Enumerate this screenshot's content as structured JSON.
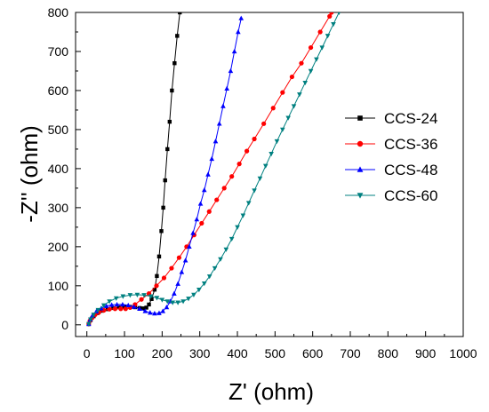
{
  "chart_data": {
    "type": "line",
    "xlabel": "Z' (ohm)",
    "ylabel": "-Z'' (ohm)",
    "xlim": [
      -30,
      1000
    ],
    "ylim": [
      -30,
      800
    ],
    "x_ticks": [
      0,
      100,
      200,
      300,
      400,
      500,
      600,
      700,
      800,
      900,
      1000
    ],
    "y_ticks": [
      0,
      100,
      200,
      300,
      400,
      500,
      600,
      700,
      800
    ],
    "grid": false,
    "legend_position": "right",
    "series": [
      {
        "name": "CCS-24",
        "color": "#000000",
        "marker": "square",
        "points": [
          [
            5,
            2
          ],
          [
            10,
            12
          ],
          [
            18,
            22
          ],
          [
            28,
            30
          ],
          [
            40,
            36
          ],
          [
            55,
            40
          ],
          [
            70,
            43
          ],
          [
            85,
            45
          ],
          [
            100,
            46
          ],
          [
            115,
            46
          ],
          [
            128,
            45
          ],
          [
            140,
            43
          ],
          [
            150,
            42
          ],
          [
            158,
            44
          ],
          [
            165,
            52
          ],
          [
            172,
            66
          ],
          [
            180,
            90
          ],
          [
            186,
            125
          ],
          [
            192,
            175
          ],
          [
            198,
            240
          ],
          [
            203,
            300
          ],
          [
            208,
            370
          ],
          [
            214,
            450
          ],
          [
            220,
            520
          ],
          [
            226,
            600
          ],
          [
            233,
            670
          ],
          [
            240,
            740
          ],
          [
            247,
            800
          ]
        ]
      },
      {
        "name": "CCS-36",
        "color": "#ff0000",
        "marker": "circle",
        "points": [
          [
            5,
            2
          ],
          [
            8,
            10
          ],
          [
            14,
            18
          ],
          [
            22,
            26
          ],
          [
            32,
            32
          ],
          [
            45,
            37
          ],
          [
            60,
            40
          ],
          [
            75,
            41
          ],
          [
            90,
            41
          ],
          [
            103,
            41
          ],
          [
            115,
            44
          ],
          [
            128,
            52
          ],
          [
            145,
            65
          ],
          [
            165,
            80
          ],
          [
            185,
            100
          ],
          [
            205,
            120
          ],
          [
            225,
            145
          ],
          [
            245,
            172
          ],
          [
            265,
            200
          ],
          [
            285,
            230
          ],
          [
            305,
            260
          ],
          [
            325,
            290
          ],
          [
            345,
            320
          ],
          [
            365,
            350
          ],
          [
            385,
            380
          ],
          [
            405,
            412
          ],
          [
            425,
            445
          ],
          [
            445,
            476
          ],
          [
            470,
            515
          ],
          [
            495,
            555
          ],
          [
            520,
            595
          ],
          [
            545,
            635
          ],
          [
            570,
            670
          ],
          [
            595,
            710
          ],
          [
            620,
            750
          ],
          [
            645,
            790
          ],
          [
            650,
            800
          ]
        ]
      },
      {
        "name": "CCS-48",
        "color": "#0000ff",
        "marker": "triangle-up",
        "points": [
          [
            5,
            2
          ],
          [
            9,
            14
          ],
          [
            15,
            24
          ],
          [
            25,
            34
          ],
          [
            38,
            42
          ],
          [
            52,
            48
          ],
          [
            66,
            51
          ],
          [
            80,
            52
          ],
          [
            95,
            52
          ],
          [
            110,
            50
          ],
          [
            125,
            46
          ],
          [
            140,
            41
          ],
          [
            155,
            35
          ],
          [
            168,
            31
          ],
          [
            180,
            29
          ],
          [
            192,
            30
          ],
          [
            202,
            35
          ],
          [
            212,
            45
          ],
          [
            222,
            60
          ],
          [
            232,
            80
          ],
          [
            242,
            105
          ],
          [
            252,
            135
          ],
          [
            262,
            165
          ],
          [
            272,
            200
          ],
          [
            282,
            235
          ],
          [
            292,
            270
          ],
          [
            302,
            310
          ],
          [
            312,
            345
          ],
          [
            322,
            385
          ],
          [
            332,
            425
          ],
          [
            342,
            470
          ],
          [
            352,
            515
          ],
          [
            362,
            560
          ],
          [
            372,
            605
          ],
          [
            382,
            650
          ],
          [
            392,
            700
          ],
          [
            402,
            750
          ],
          [
            410,
            785
          ]
        ]
      },
      {
        "name": "CCS-60",
        "color": "#008080",
        "marker": "triangle-down",
        "points": [
          [
            5,
            2
          ],
          [
            10,
            14
          ],
          [
            18,
            26
          ],
          [
            30,
            38
          ],
          [
            45,
            50
          ],
          [
            60,
            60
          ],
          [
            78,
            68
          ],
          [
            96,
            73
          ],
          [
            115,
            76
          ],
          [
            134,
            77
          ],
          [
            152,
            76
          ],
          [
            170,
            73
          ],
          [
            186,
            69
          ],
          [
            200,
            64
          ],
          [
            214,
            60
          ],
          [
            228,
            57
          ],
          [
            242,
            57
          ],
          [
            256,
            60
          ],
          [
            270,
            67
          ],
          [
            284,
            77
          ],
          [
            298,
            90
          ],
          [
            312,
            106
          ],
          [
            326,
            124
          ],
          [
            340,
            145
          ],
          [
            355,
            168
          ],
          [
            370,
            193
          ],
          [
            385,
            220
          ],
          [
            400,
            250
          ],
          [
            415,
            280
          ],
          [
            430,
            312
          ],
          [
            445,
            344
          ],
          [
            460,
            375
          ],
          [
            475,
            407
          ],
          [
            490,
            438
          ],
          [
            505,
            470
          ],
          [
            520,
            500
          ],
          [
            535,
            530
          ],
          [
            550,
            560
          ],
          [
            565,
            590
          ],
          [
            580,
            620
          ],
          [
            595,
            650
          ],
          [
            610,
            680
          ],
          [
            625,
            710
          ],
          [
            640,
            740
          ],
          [
            655,
            770
          ],
          [
            670,
            800
          ]
        ]
      }
    ]
  }
}
